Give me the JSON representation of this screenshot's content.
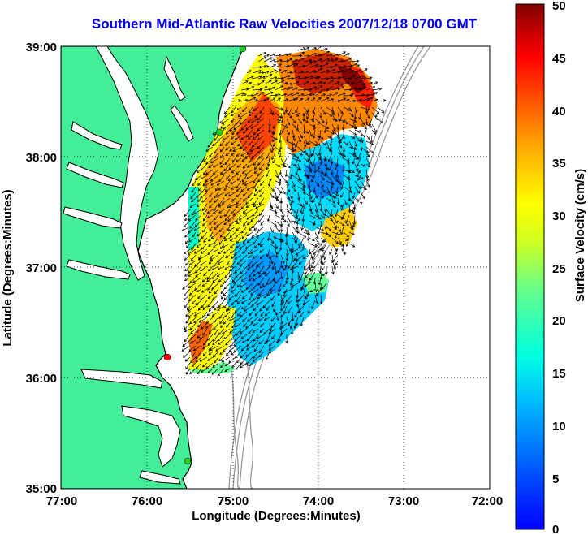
{
  "title": "Southern Mid-Atlantic Raw Velocities 2007/12/18 0700 GMT",
  "axes": {
    "xlabel": "Longitude (Degrees:Minutes)",
    "ylabel": "Latitude (Degrees:Minutes)",
    "x_ticks": [
      "77:00",
      "76:00",
      "75:00",
      "74:00",
      "73:00",
      "72:00"
    ],
    "y_ticks": [
      "39:00",
      "38:00",
      "37:00",
      "36:00",
      "35:00"
    ],
    "x_range": [
      -77,
      -72
    ],
    "y_range": [
      35,
      39
    ],
    "grid": true
  },
  "colorbar": {
    "label": "Surface Velocity (cm/s)",
    "ticks": [
      "50",
      "45",
      "40",
      "35",
      "30",
      "25",
      "20",
      "15",
      "10",
      "5",
      "0"
    ],
    "range": [
      0,
      50
    ],
    "colormap": "jet"
  },
  "colors": {
    "land": "#44ee99",
    "coast": "#000000",
    "bathymetry": "#999999",
    "station_green": "#22cc22",
    "station_red": "#ff0000",
    "title": "#0000ee"
  },
  "stations": [
    {
      "lon": -75.1,
      "lat": 39.0,
      "color": "green"
    },
    {
      "lon": -75.16,
      "lat": 38.22,
      "color": "green"
    },
    {
      "lon": -75.75,
      "lat": 36.18,
      "color": "red"
    },
    {
      "lon": -75.5,
      "lat": 35.25,
      "color": "green"
    }
  ]
}
